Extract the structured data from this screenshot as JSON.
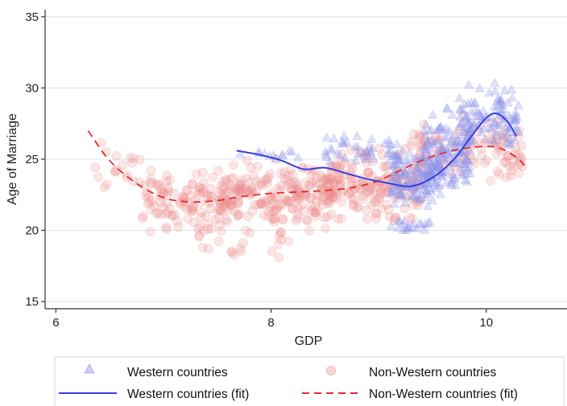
{
  "chart_data": {
    "type": "scatter",
    "xlabel": "GDP",
    "ylabel": "Age of Marriage",
    "xlim": [
      5.9,
      10.75
    ],
    "ylim": [
      14.5,
      35.5
    ],
    "xticks": [
      "6",
      "8",
      "10"
    ],
    "xtick_values": [
      6,
      8,
      10
    ],
    "yticks": [
      "15",
      "20",
      "25",
      "30",
      "35"
    ],
    "ytick_values": [
      15,
      20,
      25,
      30,
      35
    ],
    "grid": "horizontal",
    "legend_position": "bottom",
    "colors": {
      "western": "#3340e0",
      "non_western": "#e62b2b",
      "grid": "#dde9ec",
      "western_points": "#8d93ea",
      "non_western_points": "#ee8b8b"
    },
    "series": [
      {
        "name": "Western countries",
        "kind": "scatter",
        "marker": "triangle",
        "clusters": [
          {
            "x_range": [
              7.7,
              8.3
            ],
            "y_mean": 25.4,
            "y_spread": 0.5,
            "count": 12
          },
          {
            "x_range": [
              8.5,
              9.2
            ],
            "y_mean": 25.6,
            "y_spread": 0.9,
            "count": 45
          },
          {
            "x_range": [
              9.1,
              9.6
            ],
            "y_mean": 23.6,
            "y_spread": 1.6,
            "count": 120
          },
          {
            "x_range": [
              9.4,
              9.85
            ],
            "y_mean": 25.3,
            "y_spread": 2.2,
            "count": 150
          },
          {
            "x_range": [
              9.75,
              10.3
            ],
            "y_mean": 28.0,
            "y_spread": 1.8,
            "count": 110
          },
          {
            "x_range": [
              9.1,
              9.5
            ],
            "y_mean": 20.4,
            "y_spread": 0.4,
            "count": 20
          }
        ]
      },
      {
        "name": "Non-Western countries",
        "kind": "scatter",
        "marker": "circle",
        "clusters": [
          {
            "x_range": [
              6.3,
              6.9
            ],
            "y_mean": 24.3,
            "y_spread": 1.6,
            "count": 20
          },
          {
            "x_range": [
              6.8,
              7.6
            ],
            "y_mean": 22.0,
            "y_spread": 1.6,
            "count": 110
          },
          {
            "x_range": [
              7.5,
              8.6
            ],
            "y_mean": 22.5,
            "y_spread": 1.8,
            "count": 230
          },
          {
            "x_range": [
              8.5,
              9.4
            ],
            "y_mean": 23.2,
            "y_spread": 1.9,
            "count": 170
          },
          {
            "x_range": [
              9.3,
              10.35
            ],
            "y_mean": 25.4,
            "y_spread": 1.8,
            "count": 110
          },
          {
            "x_range": [
              7.3,
              8.2
            ],
            "y_mean": 18.8,
            "y_spread": 0.9,
            "count": 20
          }
        ]
      },
      {
        "name": "Western countries (fit)",
        "kind": "line",
        "style": "solid",
        "x": [
          7.68,
          7.9,
          8.1,
          8.3,
          8.5,
          8.7,
          8.9,
          9.1,
          9.3,
          9.5,
          9.7,
          9.85,
          10.0,
          10.1,
          10.2,
          10.28
        ],
        "y": [
          25.6,
          25.3,
          24.9,
          24.3,
          24.4,
          24.0,
          23.6,
          23.3,
          23.1,
          23.7,
          25.0,
          26.5,
          27.9,
          28.2,
          27.6,
          26.6
        ]
      },
      {
        "name": "Non-Western countries (fit)",
        "kind": "line",
        "style": "dashed",
        "x": [
          6.3,
          6.5,
          6.75,
          7.0,
          7.25,
          7.5,
          7.75,
          8.0,
          8.25,
          8.5,
          8.75,
          9.0,
          9.25,
          9.5,
          9.75,
          10.0,
          10.15,
          10.3,
          10.38
        ],
        "y": [
          27.0,
          24.9,
          23.3,
          22.3,
          22.0,
          22.1,
          22.4,
          22.6,
          22.7,
          22.8,
          23.0,
          23.5,
          24.4,
          25.2,
          25.7,
          25.9,
          25.7,
          25.0,
          24.3
        ]
      }
    ],
    "legend": [
      {
        "label": "Western countries",
        "marker": "triangle"
      },
      {
        "label": "Non-Western countries",
        "marker": "circle"
      },
      {
        "label": "Western countries (fit)",
        "marker": "solid-line"
      },
      {
        "label": "Non-Western countries (fit)",
        "marker": "dashed-line"
      }
    ]
  }
}
